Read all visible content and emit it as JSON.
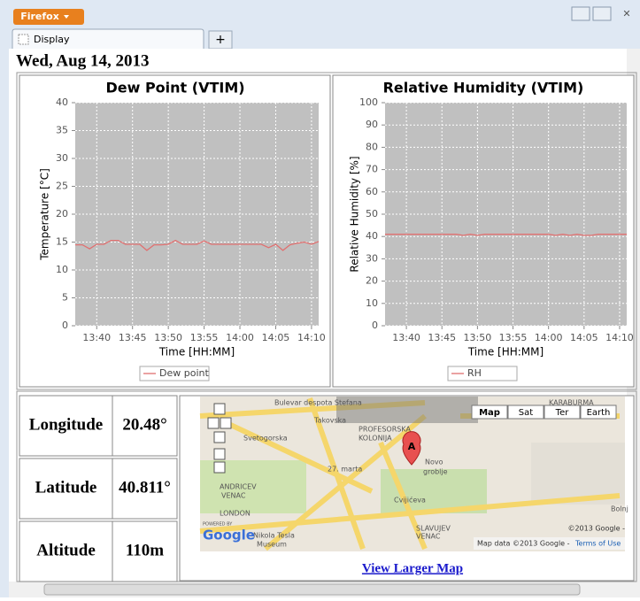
{
  "browser": {
    "menu_button": "Firefox",
    "tab": "Display",
    "new_tab": "+"
  },
  "date": "Wed, Aug 14, 2013",
  "charts": [
    {
      "chart_data": {
        "type": "line",
        "title": "Dew Point (VTIM)",
        "x_label": "Time [HH:MM]",
        "y_label": "Temperature [°C]",
        "x": [
          "13:37",
          "13:38",
          "13:39",
          "13:40",
          "13:41",
          "13:42",
          "13:43",
          "13:44",
          "13:45",
          "13:46",
          "13:47",
          "13:48",
          "13:49",
          "13:50",
          "13:51",
          "13:52",
          "13:53",
          "13:54",
          "13:55",
          "13:56",
          "13:57",
          "13:58",
          "13:59",
          "14:00",
          "14:01",
          "14:02",
          "14:03",
          "14:04",
          "14:05",
          "14:06",
          "14:07",
          "14:08",
          "14:09",
          "14:10",
          "14:11"
        ],
        "series": [
          {
            "name": "Dew point",
            "color": "#e07070",
            "values": [
              14.5,
              14.5,
              13.8,
              14.6,
              14.6,
              15.3,
              15.3,
              14.6,
              14.6,
              14.6,
              13.5,
              14.5,
              14.5,
              14.6,
              15.3,
              14.6,
              14.6,
              14.6,
              15.2,
              14.6,
              14.6,
              14.6,
              14.6,
              14.6,
              14.6,
              14.6,
              14.6,
              14.0,
              14.6,
              13.5,
              14.5,
              14.8,
              15.0,
              14.6,
              15.1
            ]
          }
        ],
        "xlim": [
          "13:37",
          "14:11"
        ],
        "xticks": [
          "13:40",
          "13:45",
          "13:50",
          "13:55",
          "14:00",
          "14:05",
          "14:10"
        ],
        "ylim": [
          0,
          40
        ],
        "yticks": [
          0,
          5,
          10,
          15,
          20,
          25,
          30,
          35,
          40
        ],
        "grid": true
      }
    },
    {
      "chart_data": {
        "type": "line",
        "title": "Relative Humidity (VTIM)",
        "x_label": "Time [HH:MM]",
        "y_label": "Relative Humidity [%]",
        "x": [
          "13:37",
          "13:38",
          "13:39",
          "13:40",
          "13:41",
          "13:42",
          "13:43",
          "13:44",
          "13:45",
          "13:46",
          "13:47",
          "13:48",
          "13:49",
          "13:50",
          "13:51",
          "13:52",
          "13:53",
          "13:54",
          "13:55",
          "13:56",
          "13:57",
          "13:58",
          "13:59",
          "14:00",
          "14:01",
          "14:02",
          "14:03",
          "14:04",
          "14:05",
          "14:06",
          "14:07",
          "14:08",
          "14:09",
          "14:10",
          "14:11"
        ],
        "series": [
          {
            "name": "RH",
            "color": "#e07070",
            "values": [
              41,
              41,
              41,
              41,
              41,
              41,
              41,
              41,
              41,
              41,
              41,
              40.5,
              41,
              40.5,
              41,
              41,
              41,
              41,
              41,
              41,
              41,
              41,
              41,
              41,
              40.5,
              41,
              40.5,
              41,
              40.5,
              40.5,
              41,
              41,
              41,
              41,
              41
            ]
          }
        ],
        "xlim": [
          "13:37",
          "14:11"
        ],
        "xticks": [
          "13:40",
          "13:45",
          "13:50",
          "13:55",
          "14:00",
          "14:05",
          "14:10"
        ],
        "ylim": [
          0,
          100
        ],
        "yticks": [
          0,
          10,
          20,
          30,
          40,
          50,
          60,
          70,
          80,
          90,
          100
        ],
        "grid": true
      }
    }
  ],
  "location": {
    "rows": [
      [
        "Longitude",
        "20.48°"
      ],
      [
        "Latitude",
        "40.811°"
      ],
      [
        "Altitude",
        "110m"
      ]
    ]
  },
  "map": {
    "buttons": [
      "Map",
      "Sat",
      "Ter",
      "Earth"
    ],
    "labels": [
      "Bulevar despota Stefana",
      "Svetogorska",
      "Takovska",
      "27. marta",
      "Cvijićeva",
      "PROFESORSKA",
      "KOLONIJA",
      "Novo",
      "groblje",
      "ANDRICEV",
      "VENAC",
      "LONDON",
      "SLAVUJEV",
      "VENAC",
      "Nikola Tesla",
      "Museum",
      "KARABURMA",
      "Bolnj"
    ],
    "marker": "A",
    "powered": "POWERED BY",
    "logo": "Google",
    "copyright": "©2013 Google -",
    "attribution": "Map data ©2013 Google -",
    "terms": "Terms of Use",
    "link": "View Larger Map"
  }
}
